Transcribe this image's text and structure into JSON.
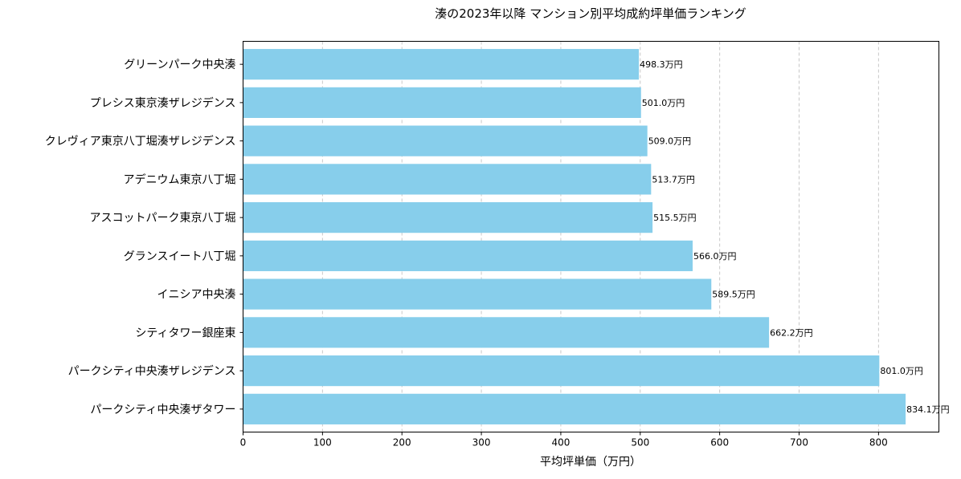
{
  "chart_data": {
    "type": "bar",
    "orientation": "horizontal",
    "title": "湊の2023年以降 マンション別平均成約坪単価ランキング",
    "xlabel": "平均坪単価（万円）",
    "ylabel": "",
    "xlim": [
      0,
      876
    ],
    "xticks": [
      0,
      100,
      200,
      300,
      400,
      500,
      600,
      700,
      800
    ],
    "grid": "x-dashed",
    "bar_color": "#87CEEB",
    "value_suffix": "万円",
    "categories": [
      "グリーンパーク中央湊",
      "プレシス東京湊ザレジデンス",
      "クレヴィア東京八丁堀湊ザレジデンス",
      "アデニウム東京八丁堀",
      "アスコットパーク東京八丁堀",
      "グランスイート八丁堀",
      "イニシア中央湊",
      "シティタワー銀座東",
      "パークシティ中央湊ザレジデンス",
      "パークシティ中央湊ザタワー"
    ],
    "values": [
      498.3,
      501.0,
      509.0,
      513.7,
      515.5,
      566.0,
      589.5,
      662.2,
      801.0,
      834.1
    ],
    "data_labels": [
      "498.3万円",
      "501.0万円",
      "509.0万円",
      "513.7万円",
      "515.5万円",
      "566.0万円",
      "589.5万円",
      "662.2万円",
      "801.0万円",
      "834.1万円"
    ]
  }
}
